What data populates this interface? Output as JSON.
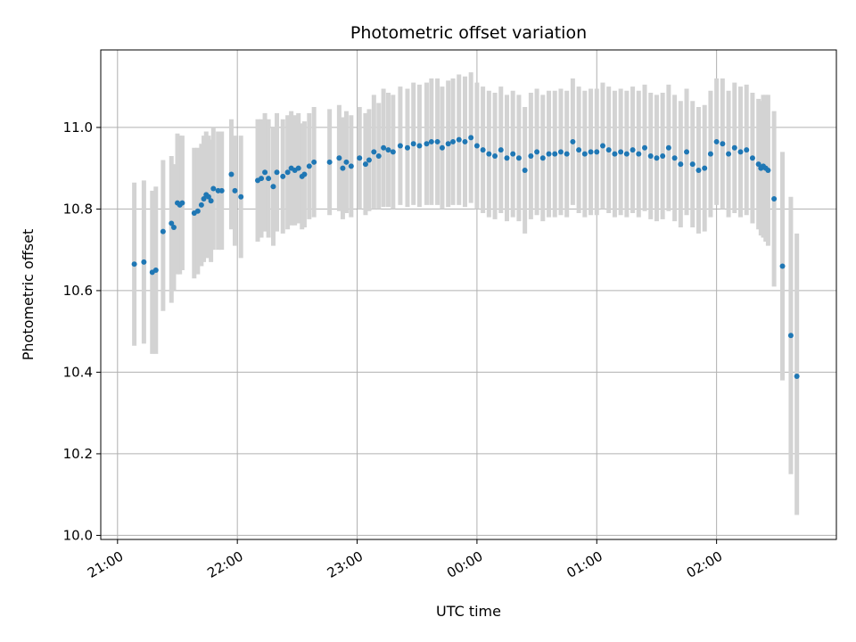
{
  "chart_data": {
    "type": "scatter",
    "title": "Photometric offset variation",
    "xlabel": "UTC time",
    "ylabel": "Photometric offset",
    "x_unit": "hours after 21:00 UTC",
    "xlim": [
      -0.14,
      6.0
    ],
    "ylim": [
      9.99,
      11.19
    ],
    "x_ticks": [
      0,
      1,
      2,
      3,
      4,
      5
    ],
    "x_tick_labels": [
      "21:00",
      "22:00",
      "23:00",
      "00:00",
      "01:00",
      "02:00"
    ],
    "y_ticks": [
      10.0,
      10.2,
      10.4,
      10.6,
      10.8,
      11.0
    ],
    "y_tick_labels": [
      "10.0",
      "10.2",
      "10.4",
      "10.6",
      "10.8",
      "11.0"
    ],
    "grid": true,
    "colors": {
      "point": "#1f77b4",
      "errorbar": "#d3d3d3",
      "grid": "#b0b0b0"
    },
    "series": [
      {
        "x": [
          0.14,
          0.22,
          0.29,
          0.32,
          0.38,
          0.45,
          0.47,
          0.5,
          0.52,
          0.54,
          0.64,
          0.67,
          0.7,
          0.72,
          0.74,
          0.76,
          0.78,
          0.8,
          0.84,
          0.87,
          0.95,
          0.98,
          1.03,
          1.17,
          1.2,
          1.23,
          1.26,
          1.3,
          1.33,
          1.38,
          1.42,
          1.45,
          1.48,
          1.51,
          1.54,
          1.56,
          1.6,
          1.64,
          1.77,
          1.85,
          1.88,
          1.91,
          1.95,
          2.02,
          2.07,
          2.1,
          2.14,
          2.18,
          2.22,
          2.26,
          2.3,
          2.36,
          2.42,
          2.47,
          2.52,
          2.58,
          2.62,
          2.67,
          2.71,
          2.76,
          2.8,
          2.85,
          2.9,
          2.95,
          3.0,
          3.05,
          3.1,
          3.15,
          3.2,
          3.25,
          3.3,
          3.35,
          3.4,
          3.45,
          3.5,
          3.55,
          3.6,
          3.65,
          3.7,
          3.75,
          3.8,
          3.85,
          3.9,
          3.95,
          4.0,
          4.05,
          4.1,
          4.15,
          4.2,
          4.25,
          4.3,
          4.35,
          4.4,
          4.45,
          4.5,
          4.55,
          4.6,
          4.65,
          4.7,
          4.75,
          4.8,
          4.85,
          4.9,
          4.95,
          5.0,
          5.05,
          5.1,
          5.15,
          5.2,
          5.25,
          5.3,
          5.35,
          5.37,
          5.39,
          5.41,
          5.43,
          5.48,
          5.55,
          5.62,
          5.67
        ],
        "y": [
          10.665,
          10.67,
          10.645,
          10.65,
          10.745,
          10.765,
          10.755,
          10.815,
          10.81,
          10.815,
          10.79,
          10.795,
          10.81,
          10.825,
          10.835,
          10.83,
          10.82,
          10.85,
          10.845,
          10.845,
          10.885,
          10.845,
          10.83,
          10.87,
          10.875,
          10.89,
          10.875,
          10.855,
          10.89,
          10.88,
          10.89,
          10.9,
          10.895,
          10.9,
          10.88,
          10.885,
          10.905,
          10.915,
          10.915,
          10.925,
          10.9,
          10.915,
          10.905,
          10.925,
          10.91,
          10.92,
          10.94,
          10.93,
          10.95,
          10.945,
          10.94,
          10.955,
          10.95,
          10.96,
          10.955,
          10.96,
          10.965,
          10.965,
          10.95,
          10.96,
          10.965,
          10.97,
          10.965,
          10.975,
          10.955,
          10.945,
          10.935,
          10.93,
          10.945,
          10.925,
          10.935,
          10.925,
          10.895,
          10.93,
          10.94,
          10.925,
          10.935,
          10.935,
          10.94,
          10.935,
          10.965,
          10.945,
          10.935,
          10.94,
          10.94,
          10.955,
          10.945,
          10.935,
          10.94,
          10.935,
          10.945,
          10.935,
          10.95,
          10.93,
          10.925,
          10.93,
          10.95,
          10.925,
          10.91,
          10.94,
          10.91,
          10.895,
          10.9,
          10.935,
          10.965,
          10.96,
          10.935,
          10.95,
          10.94,
          10.945,
          10.925,
          10.91,
          10.9,
          10.905,
          10.9,
          10.895,
          10.825,
          10.66,
          10.49,
          10.39
        ],
        "y_low": [
          10.465,
          10.47,
          10.445,
          10.445,
          10.55,
          10.57,
          10.6,
          10.64,
          10.64,
          10.65,
          10.63,
          10.64,
          10.66,
          10.67,
          10.68,
          10.68,
          10.67,
          10.7,
          10.7,
          10.7,
          10.75,
          10.71,
          10.68,
          10.72,
          10.73,
          10.745,
          10.73,
          10.71,
          10.745,
          10.74,
          10.75,
          10.76,
          10.76,
          10.765,
          10.75,
          10.755,
          10.775,
          10.78,
          10.785,
          10.795,
          10.775,
          10.79,
          10.78,
          10.8,
          10.785,
          10.795,
          10.8,
          10.8,
          10.805,
          10.805,
          10.8,
          10.81,
          10.805,
          10.81,
          10.805,
          10.81,
          10.81,
          10.81,
          10.8,
          10.805,
          10.81,
          10.81,
          10.805,
          10.815,
          10.8,
          10.79,
          10.78,
          10.775,
          10.79,
          10.77,
          10.78,
          10.77,
          10.74,
          10.775,
          10.785,
          10.77,
          10.78,
          10.78,
          10.785,
          10.78,
          10.81,
          10.79,
          10.78,
          10.785,
          10.785,
          10.8,
          10.79,
          10.78,
          10.785,
          10.78,
          10.79,
          10.78,
          10.795,
          10.775,
          10.77,
          10.775,
          10.795,
          10.77,
          10.755,
          10.785,
          10.755,
          10.74,
          10.745,
          10.78,
          10.81,
          10.8,
          10.78,
          10.79,
          10.78,
          10.785,
          10.765,
          10.75,
          10.735,
          10.73,
          10.72,
          10.71,
          10.61,
          10.38,
          10.15,
          10.05
        ],
        "y_high": [
          10.865,
          10.87,
          10.845,
          10.855,
          10.92,
          10.93,
          10.91,
          10.985,
          10.98,
          10.98,
          10.95,
          10.95,
          10.96,
          10.98,
          10.99,
          10.98,
          10.97,
          11.0,
          10.99,
          10.99,
          11.02,
          10.98,
          10.98,
          11.02,
          11.02,
          11.035,
          11.02,
          11.0,
          11.035,
          11.02,
          11.03,
          11.04,
          11.03,
          11.035,
          11.01,
          11.015,
          11.035,
          11.05,
          11.045,
          11.055,
          11.025,
          11.04,
          11.03,
          11.05,
          11.035,
          11.045,
          11.08,
          11.06,
          11.095,
          11.085,
          11.08,
          11.1,
          11.095,
          11.11,
          11.105,
          11.11,
          11.12,
          11.12,
          11.1,
          11.115,
          11.12,
          11.13,
          11.125,
          11.135,
          11.11,
          11.1,
          11.09,
          11.085,
          11.1,
          11.08,
          11.09,
          11.08,
          11.05,
          11.085,
          11.095,
          11.08,
          11.09,
          11.09,
          11.095,
          11.09,
          11.12,
          11.1,
          11.09,
          11.095,
          11.095,
          11.11,
          11.1,
          11.09,
          11.095,
          11.09,
          11.1,
          11.09,
          11.105,
          11.085,
          11.08,
          11.085,
          11.105,
          11.08,
          11.065,
          11.095,
          11.065,
          11.05,
          11.055,
          11.09,
          11.12,
          11.12,
          11.09,
          11.11,
          11.1,
          11.105,
          11.085,
          11.07,
          11.065,
          11.08,
          11.08,
          11.08,
          11.04,
          10.94,
          10.83,
          10.74
        ]
      }
    ]
  }
}
